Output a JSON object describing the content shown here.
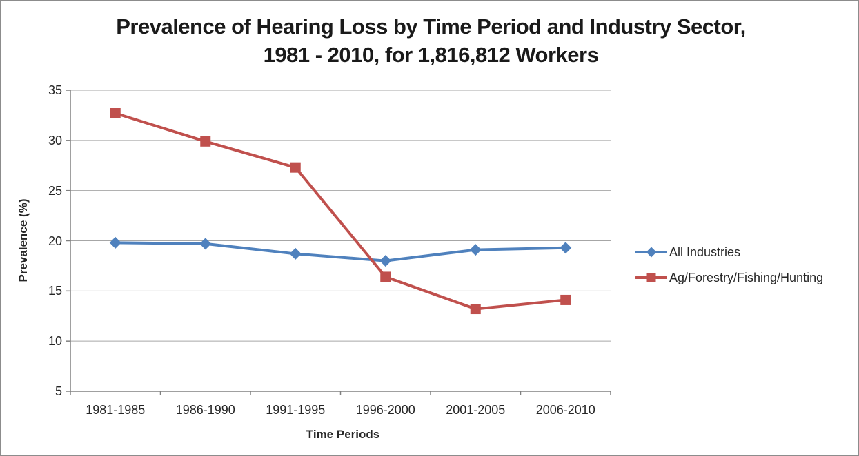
{
  "window": {
    "background": "#ffffff",
    "border_color": "#8c8c8c"
  },
  "chart_data": {
    "type": "line",
    "title": "Prevalence of Hearing Loss by Time Period and Industry Sector, 1981 - 2010, for 1,816,812 Workers",
    "title_lines": [
      "Prevalence of Hearing Loss by Time Period and Industry Sector,",
      "1981 - 2010, for 1,816,812 Workers"
    ],
    "xlabel": "Time Periods",
    "ylabel": "Prevalence (%)",
    "categories": [
      "1981-1985",
      "1986-1990",
      "1991-1995",
      "1996-2000",
      "2001-2005",
      "2006-2010"
    ],
    "series": [
      {
        "name": "All Industries",
        "color": "#4F81BD",
        "marker": "diamond",
        "values": [
          19.8,
          19.7,
          18.7,
          18.0,
          19.1,
          19.3
        ]
      },
      {
        "name": "Ag/Forestry/Fishing/Hunting",
        "color": "#C0504D",
        "marker": "square",
        "values": [
          32.7,
          29.9,
          27.3,
          16.4,
          13.2,
          14.1
        ]
      }
    ],
    "ylim": [
      5,
      35
    ],
    "ytick_step": 5,
    "grid": true,
    "legend_position": "right",
    "axis_color": "#808080",
    "gridline_color": "#A6A6A6",
    "text_color": "#262626"
  }
}
